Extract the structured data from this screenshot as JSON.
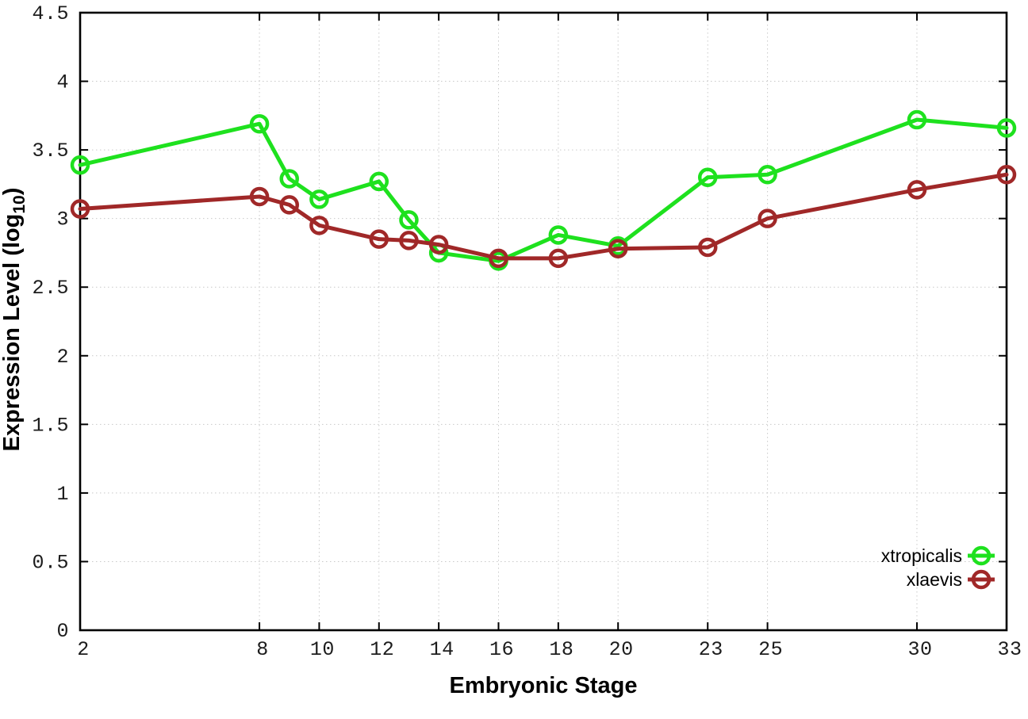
{
  "figure": {
    "background": "#ffffff",
    "axis_color": "#000000",
    "grid_color": "#c9c9c9"
  },
  "chart_data": {
    "type": "line",
    "title": "",
    "xlabel": "Embryonic Stage",
    "ylabel": "Expression Level (log10)",
    "ylabel_text": "Expression Level (log",
    "ylabel_subscript": "10",
    "ylabel_suffix": ")",
    "x": [
      2,
      8,
      9,
      10,
      12,
      13,
      14,
      16,
      18,
      20,
      23,
      25,
      30,
      33
    ],
    "series": [
      {
        "name": "xtropicalis",
        "color": "#1ee11e",
        "marker": "open-circle",
        "values": [
          3.39,
          3.69,
          3.29,
          3.14,
          3.27,
          2.99,
          2.75,
          2.69,
          2.88,
          2.8,
          3.3,
          3.32,
          3.72,
          3.66
        ]
      },
      {
        "name": "xlaevis",
        "color": "#a02828",
        "marker": "open-circle",
        "values": [
          3.07,
          3.16,
          3.1,
          2.95,
          2.85,
          2.84,
          2.81,
          2.71,
          2.71,
          2.78,
          2.79,
          3.0,
          3.21,
          3.32
        ]
      }
    ],
    "xlim": [
      2,
      33
    ],
    "ylim": [
      0,
      4.5
    ],
    "xticks": [
      2,
      8,
      10,
      12,
      14,
      16,
      18,
      20,
      23,
      25,
      30,
      33
    ],
    "xtick_labels": [
      "2",
      "8",
      "10",
      "12",
      "14",
      "16",
      "18",
      "20",
      "23",
      "25",
      "30",
      "33"
    ],
    "yticks": [
      0,
      0.5,
      1,
      1.5,
      2,
      2.5,
      3,
      3.5,
      4,
      4.5
    ],
    "ytick_labels": [
      "0",
      "0.5",
      "1",
      "1.5",
      "2",
      "2.5",
      "3",
      "3.5",
      "4",
      "4.5"
    ],
    "grid": true,
    "grid_style": "dotted",
    "legend_position": "bottom-right",
    "legend": [
      "xtropicalis",
      "xlaevis"
    ]
  }
}
